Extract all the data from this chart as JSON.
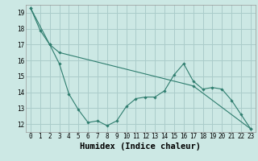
{
  "xlabel": "Humidex (Indice chaleur)",
  "x_ticks": [
    0,
    1,
    2,
    3,
    4,
    5,
    6,
    7,
    8,
    9,
    10,
    11,
    12,
    13,
    14,
    15,
    16,
    17,
    18,
    19,
    20,
    21,
    22,
    23
  ],
  "ylim": [
    11.5,
    19.5
  ],
  "xlim": [
    -0.5,
    23.5
  ],
  "yticks": [
    12,
    13,
    14,
    15,
    16,
    17,
    18,
    19
  ],
  "line1_x": [
    0,
    1,
    2,
    3,
    4,
    5,
    6,
    7,
    8,
    9,
    10,
    11,
    12,
    13,
    14,
    15,
    16,
    17,
    18,
    19,
    20,
    21,
    22,
    23
  ],
  "line1_y": [
    19.3,
    17.9,
    17.0,
    15.8,
    13.9,
    12.9,
    12.1,
    12.2,
    11.9,
    12.2,
    13.1,
    13.6,
    13.7,
    13.7,
    14.1,
    15.1,
    15.8,
    14.7,
    14.2,
    14.3,
    14.2,
    13.5,
    12.6,
    11.7
  ],
  "line2_x": [
    0,
    2,
    3,
    17,
    23
  ],
  "line2_y": [
    19.3,
    17.0,
    16.5,
    14.4,
    11.7
  ],
  "line_color": "#2e7d6e",
  "bg_color": "#cce8e4",
  "grid_color": "#aaccca",
  "tick_label_fontsize": 5.5,
  "xlabel_fontsize": 7.5
}
